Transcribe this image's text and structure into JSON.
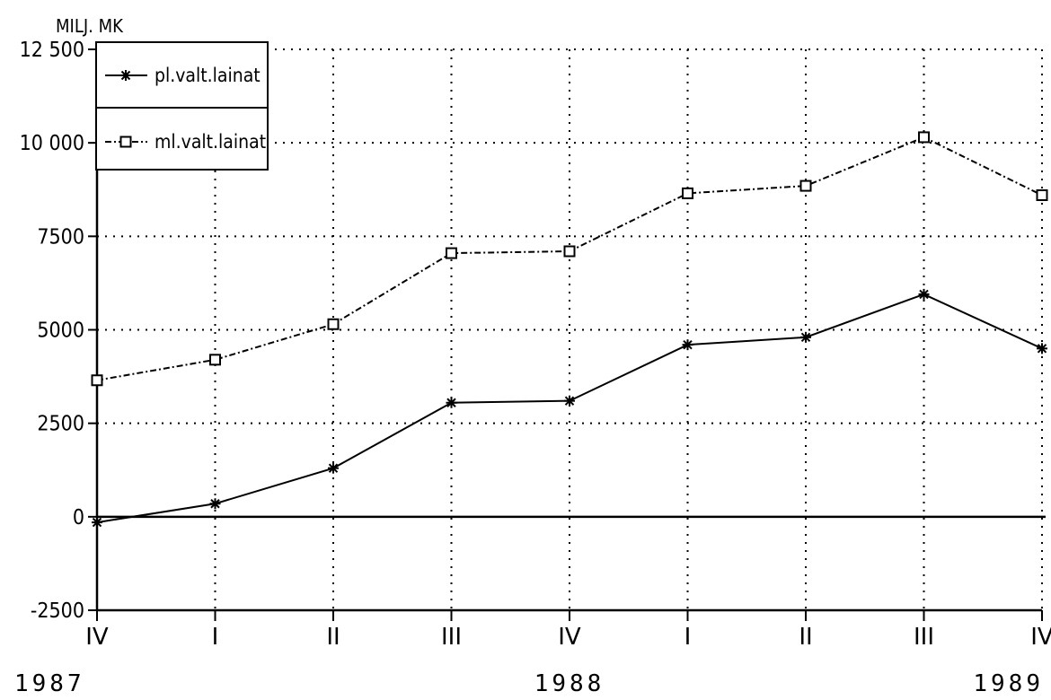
{
  "chart_data": {
    "type": "line",
    "ylabel": "MILJ. MK",
    "categories": [
      "IV",
      "I",
      "II",
      "III",
      "IV",
      "I",
      "II",
      "III",
      "IV"
    ],
    "years": [
      {
        "label": "1987",
        "at": 0
      },
      {
        "label": "1988",
        "at": 4
      },
      {
        "label": "1989",
        "at": 8
      }
    ],
    "ylim": [
      -2500,
      12500
    ],
    "yticks": [
      {
        "value": 12500,
        "label": "12 500"
      },
      {
        "value": 10000,
        "label": "10 000"
      },
      {
        "value": 7500,
        "label": "7500"
      },
      {
        "value": 5000,
        "label": "5000"
      },
      {
        "value": 2500,
        "label": "2500"
      },
      {
        "value": 0,
        "label": "0"
      },
      {
        "value": -2500,
        "label": "-2500"
      }
    ],
    "grid": true,
    "legend_position": "top-left",
    "series": [
      {
        "name": "pl.valt.lainat",
        "marker": "asterisk",
        "line_style": "solid",
        "color": "#000000",
        "values": [
          -150,
          350,
          1300,
          3050,
          3100,
          4600,
          4800,
          5950,
          4500
        ]
      },
      {
        "name": "ml.valt.lainat",
        "marker": "square",
        "line_style": "dashdot",
        "color": "#000000",
        "values": [
          3650,
          4200,
          5150,
          7050,
          7100,
          8650,
          8850,
          10150,
          8600
        ]
      }
    ]
  }
}
